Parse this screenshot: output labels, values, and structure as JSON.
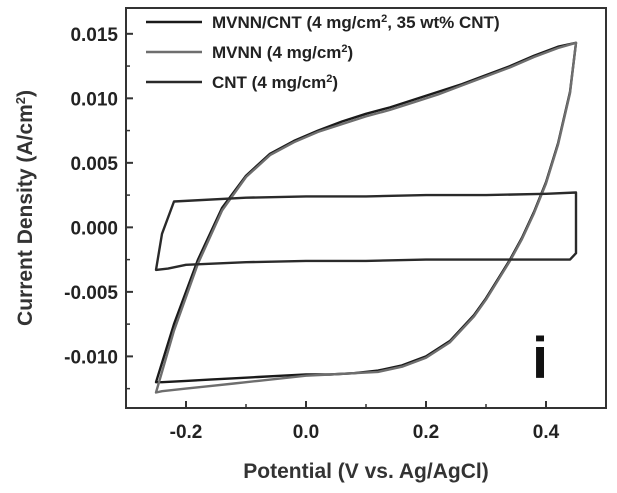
{
  "chart_data": {
    "type": "line",
    "title": "",
    "xlabel": "Potential (V vs. Ag/AgCl)",
    "ylabel_main": "Current Density (A/cm",
    "ylabel_sup": "2",
    "ylabel_tail": ")",
    "xlim": [
      -0.3,
      0.5
    ],
    "ylim": [
      -0.014,
      0.017
    ],
    "xticks": [
      -0.2,
      0.0,
      0.2,
      0.4
    ],
    "xtick_labels": [
      "-0.2",
      "0.0",
      "0.2",
      "0.4"
    ],
    "yticks": [
      -0.01,
      -0.005,
      0.0,
      0.005,
      0.01,
      0.015
    ],
    "ytick_labels": [
      "-0.010",
      "-0.005",
      "0.000",
      "0.005",
      "0.010",
      "0.015"
    ],
    "grid": false,
    "legend_position": "top-left",
    "panel_label": "i",
    "series": [
      {
        "name": "MVNN/CNT (4 mg/cm², 35 wt% CNT)",
        "legend_main": "MVNN/CNT (4 mg/cm",
        "legend_sup": "2",
        "legend_tail": ", 35 wt% CNT)",
        "color": "#1a1a1a",
        "x": [
          -0.25,
          -0.22,
          -0.18,
          -0.14,
          -0.1,
          -0.06,
          -0.02,
          0.02,
          0.06,
          0.1,
          0.14,
          0.18,
          0.22,
          0.26,
          0.3,
          0.34,
          0.38,
          0.42,
          0.45,
          0.44,
          0.42,
          0.4,
          0.38,
          0.36,
          0.34,
          0.32,
          0.3,
          0.28,
          0.24,
          0.2,
          0.16,
          0.12,
          0.08,
          0.04,
          0.0,
          -0.04,
          -0.08,
          -0.12,
          -0.16,
          -0.2,
          -0.24,
          -0.25
        ],
        "y": [
          -0.012,
          -0.0075,
          -0.0025,
          0.0015,
          0.004,
          0.0057,
          0.0067,
          0.0075,
          0.0082,
          0.0088,
          0.0093,
          0.0099,
          0.0105,
          0.0111,
          0.0118,
          0.0125,
          0.0133,
          0.014,
          0.0143,
          0.0105,
          0.0065,
          0.0035,
          0.0012,
          -0.0008,
          -0.0025,
          -0.004,
          -0.0055,
          -0.0068,
          -0.0088,
          -0.01,
          -0.0107,
          -0.0111,
          -0.0113,
          -0.0114,
          -0.0114,
          -0.0115,
          -0.0116,
          -0.0117,
          -0.0118,
          -0.0119,
          -0.012,
          -0.012
        ]
      },
      {
        "name": "MVNN (4 mg/cm²)",
        "legend_main": "MVNN (4 mg/cm",
        "legend_sup": "2",
        "legend_tail": ")",
        "color": "#6e6e6e",
        "x": [
          -0.25,
          -0.22,
          -0.18,
          -0.14,
          -0.1,
          -0.06,
          -0.02,
          0.02,
          0.06,
          0.1,
          0.14,
          0.18,
          0.22,
          0.26,
          0.3,
          0.34,
          0.38,
          0.42,
          0.45,
          0.44,
          0.42,
          0.4,
          0.38,
          0.36,
          0.34,
          0.32,
          0.3,
          0.28,
          0.24,
          0.2,
          0.16,
          0.12,
          0.08,
          0.04,
          0.0,
          -0.04,
          -0.08,
          -0.12,
          -0.16,
          -0.2,
          -0.24,
          -0.25
        ],
        "y": [
          -0.0128,
          -0.008,
          -0.0028,
          0.0013,
          0.0039,
          0.0056,
          0.0066,
          0.0074,
          0.008,
          0.0086,
          0.0091,
          0.0097,
          0.0103,
          0.011,
          0.0117,
          0.0124,
          0.0132,
          0.0139,
          0.0143,
          0.0104,
          0.0064,
          0.0034,
          0.0011,
          -0.0009,
          -0.0026,
          -0.0041,
          -0.0056,
          -0.0069,
          -0.0089,
          -0.0101,
          -0.0108,
          -0.0112,
          -0.0113,
          -0.0114,
          -0.0115,
          -0.0117,
          -0.0119,
          -0.0121,
          -0.0123,
          -0.0125,
          -0.0127,
          -0.0128
        ]
      },
      {
        "name": "CNT (4 mg/cm²)",
        "legend_main": "CNT (4 mg/cm",
        "legend_sup": "2",
        "legend_tail": ")",
        "color": "#2a2a2a",
        "x": [
          -0.25,
          -0.24,
          -0.22,
          -0.1,
          0.0,
          0.1,
          0.2,
          0.3,
          0.4,
          0.45,
          0.45,
          0.44,
          0.4,
          0.3,
          0.2,
          0.1,
          0.0,
          -0.1,
          -0.2,
          -0.23,
          -0.25
        ],
        "y": [
          -0.0033,
          -0.0005,
          0.002,
          0.0023,
          0.0024,
          0.0024,
          0.0025,
          0.0025,
          0.0026,
          0.0027,
          -0.002,
          -0.0025,
          -0.0025,
          -0.0025,
          -0.0025,
          -0.0026,
          -0.0026,
          -0.0027,
          -0.0029,
          -0.0032,
          -0.0033
        ]
      }
    ]
  }
}
